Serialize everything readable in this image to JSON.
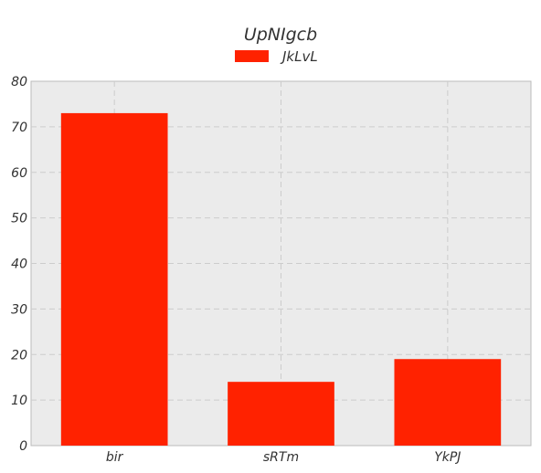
{
  "chart_data": {
    "type": "bar",
    "title": "UpNIgcb",
    "categories": [
      "bir",
      "sRTm",
      "YkPJ"
    ],
    "series": [
      {
        "name": "JkLvL",
        "values": [
          73,
          14,
          19
        ],
        "color": "#ff2200"
      }
    ],
    "ylim": [
      0,
      80
    ],
    "yticks": [
      0,
      10,
      20,
      30,
      40,
      50,
      60,
      70,
      80
    ],
    "grid": true,
    "legend_position": "top-center",
    "plot_background": "#ebebeb"
  }
}
